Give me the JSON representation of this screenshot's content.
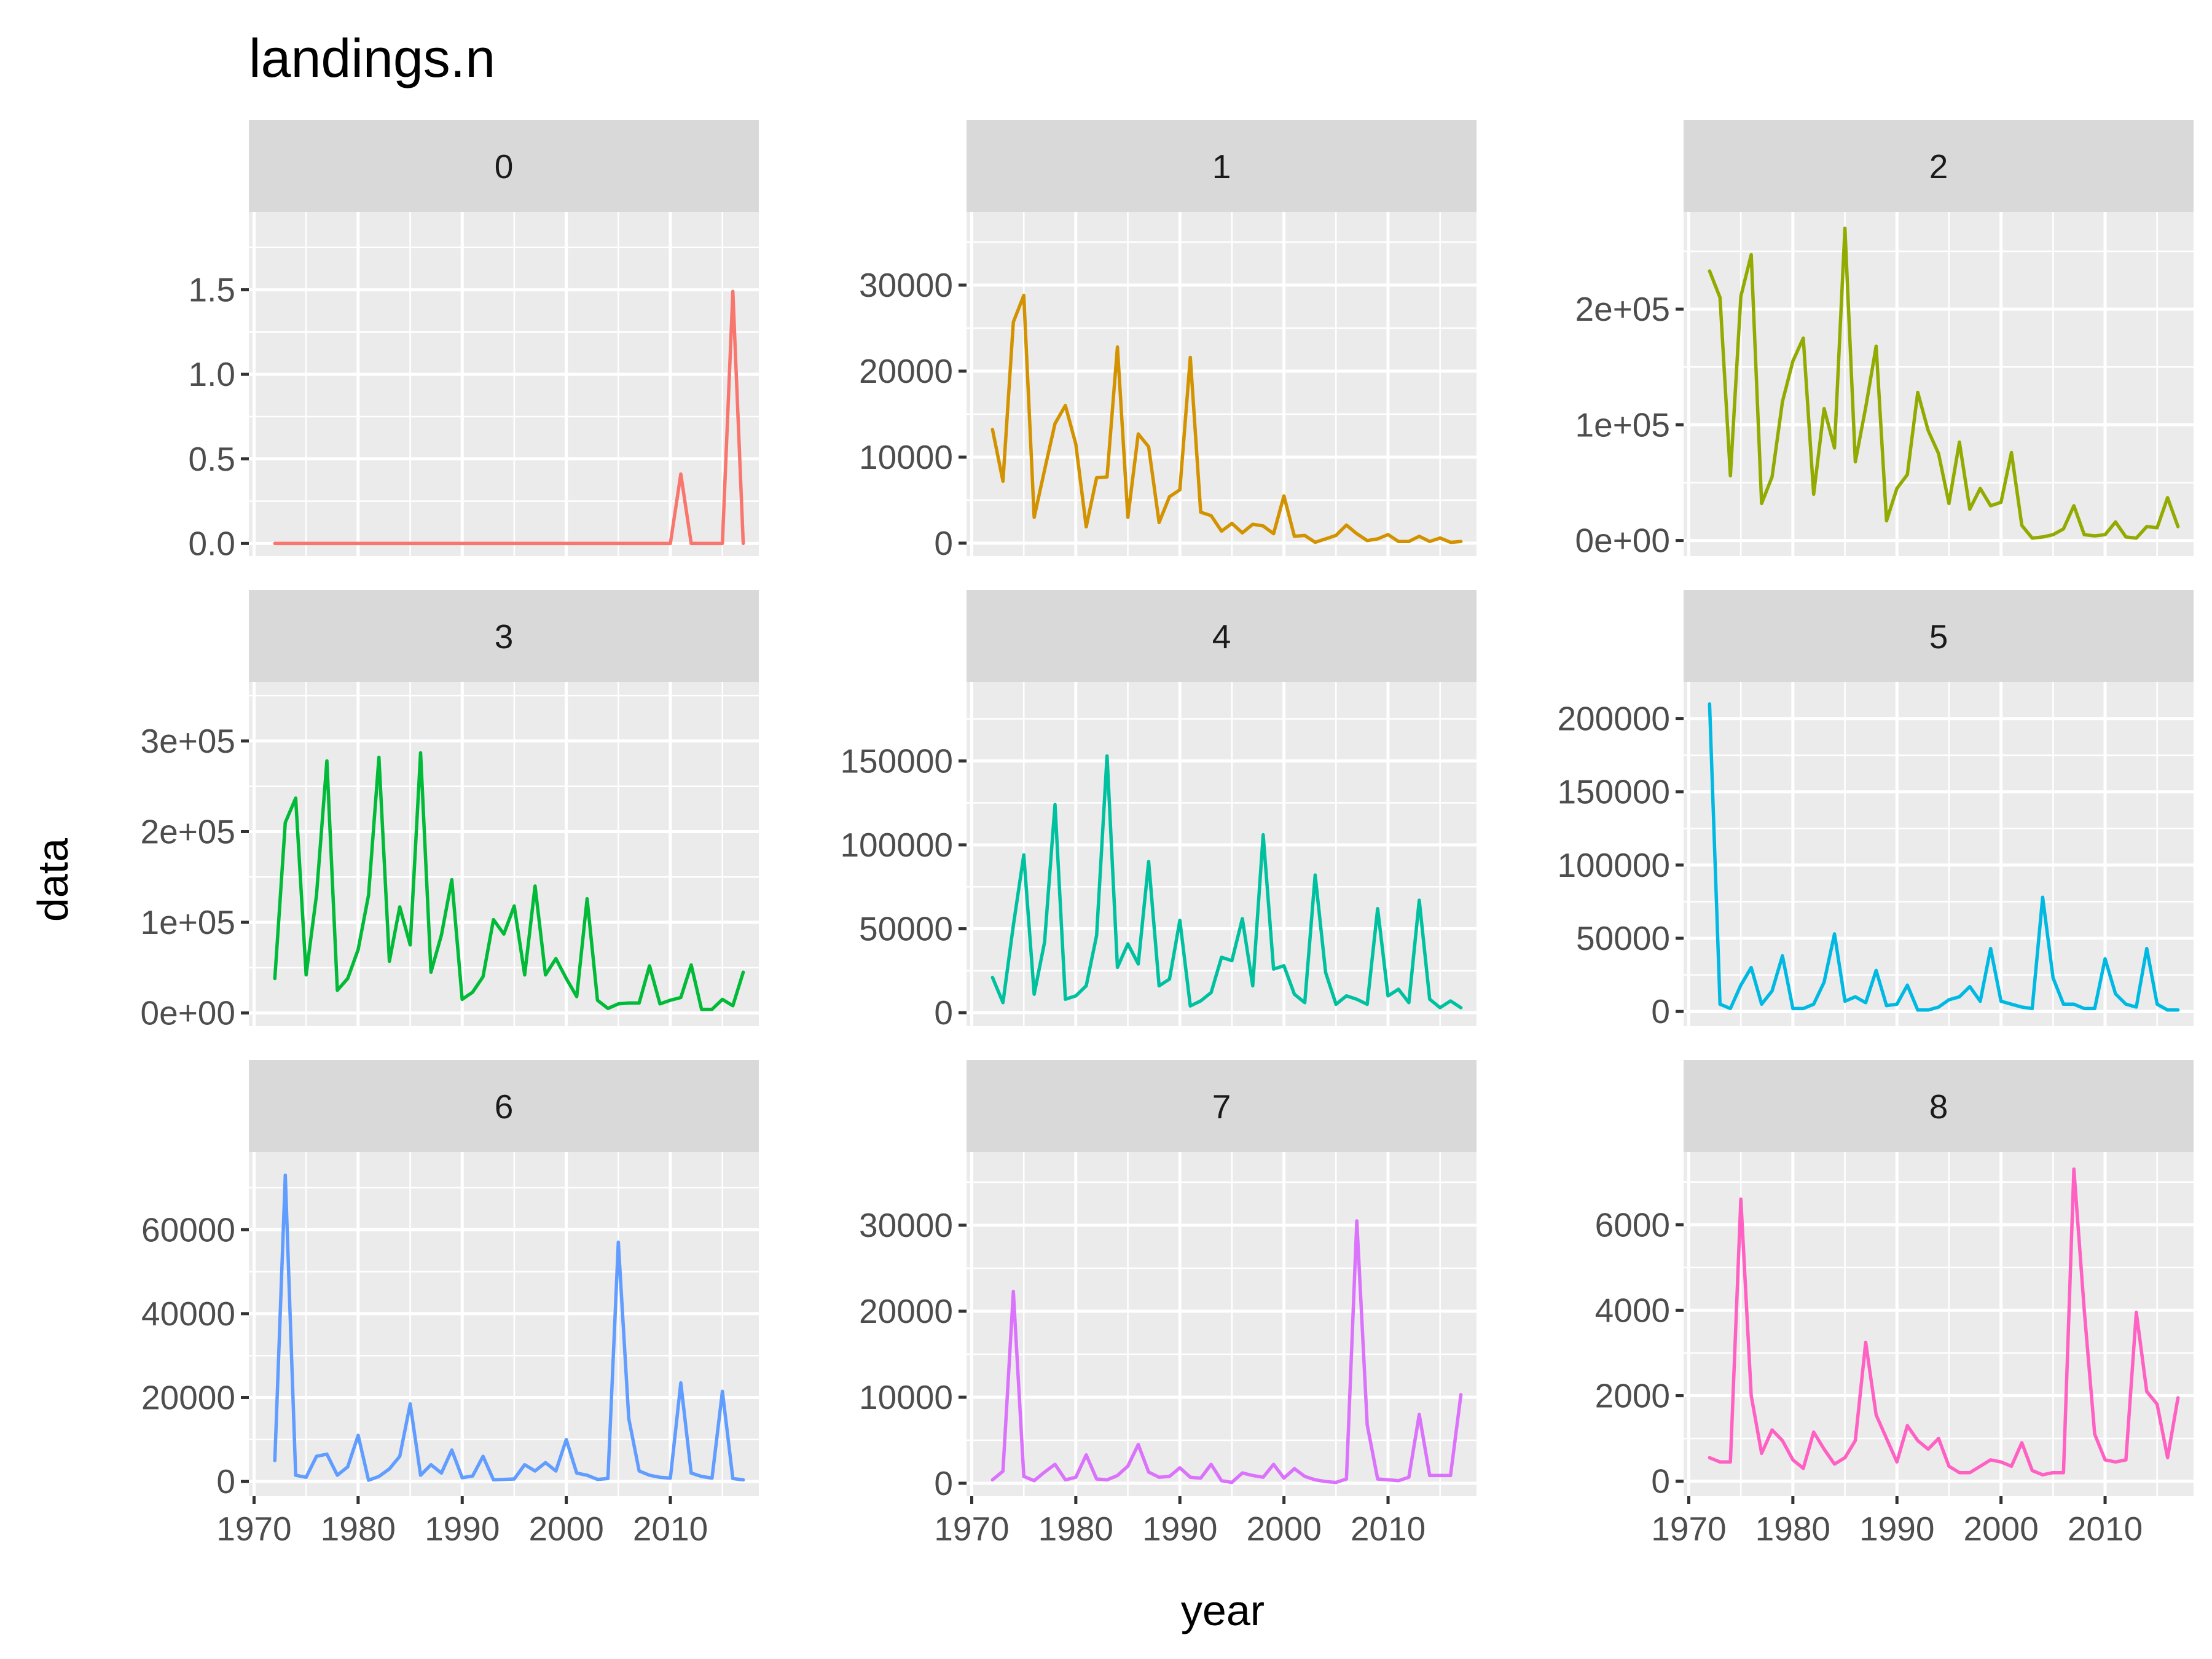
{
  "chart_data": {
    "type": "line",
    "title": "landings.n",
    "xlabel": "year",
    "ylabel": "data",
    "grid": true,
    "legend": "none",
    "facet_layout": "3x3",
    "x_ticks": [
      1970,
      1980,
      1990,
      2000,
      2010
    ],
    "x_tick_labels": [
      "1970",
      "1980",
      "1990",
      "2000",
      "2010"
    ],
    "xlim": [
      1969.5,
      2018.5
    ],
    "x": [
      1972,
      1973,
      1974,
      1975,
      1976,
      1977,
      1978,
      1979,
      1980,
      1981,
      1982,
      1983,
      1984,
      1985,
      1986,
      1987,
      1988,
      1989,
      1990,
      1991,
      1992,
      1993,
      1994,
      1995,
      1996,
      1997,
      1998,
      1999,
      2000,
      2001,
      2002,
      2003,
      2004,
      2005,
      2006,
      2007,
      2008,
      2009,
      2010,
      2011,
      2012,
      2013,
      2014,
      2015,
      2016,
      2017
    ],
    "panels": [
      {
        "label": "0",
        "color": "#F8766D",
        "ylim": [
          -0.075,
          1.96
        ],
        "y_ticks": [
          0,
          0.5,
          1,
          1.5
        ],
        "y_tick_labels": [
          "0.0",
          "0.5",
          "1.0",
          "1.5"
        ],
        "values": [
          0,
          0,
          0,
          0,
          0,
          0,
          0,
          0,
          0,
          0,
          0,
          0,
          0,
          0,
          0,
          0,
          0,
          0,
          0,
          0,
          0,
          0,
          0,
          0,
          0,
          0,
          0,
          0,
          0,
          0,
          0,
          0,
          0,
          0,
          0,
          0,
          0,
          0,
          0,
          0.41,
          0,
          0,
          0,
          0,
          1.49,
          0
        ]
      },
      {
        "label": "1",
        "color": "#D39200",
        "ylim": [
          -1500,
          38500
        ],
        "y_ticks": [
          0,
          10000,
          20000,
          30000
        ],
        "y_tick_labels": [
          "0",
          "10000",
          "20000",
          "30000"
        ],
        "values": [
          13200,
          7200,
          25700,
          28800,
          3000,
          8500,
          13900,
          16000,
          11500,
          1900,
          7600,
          7700,
          22800,
          3000,
          12700,
          11200,
          2400,
          5400,
          6200,
          21600,
          3600,
          3200,
          1400,
          2300,
          1200,
          2200,
          2000,
          1100,
          5500,
          800,
          900,
          100,
          500,
          900,
          2100,
          1100,
          300,
          500,
          1000,
          200,
          200,
          800,
          200,
          600,
          100,
          200
        ]
      },
      {
        "label": "2",
        "color": "#93AA00",
        "ylim": [
          -13500,
          284000
        ],
        "y_ticks": [
          0,
          100000,
          200000
        ],
        "y_tick_labels": [
          "0e+00",
          "1e+05",
          "2e+05"
        ],
        "values": [
          233000,
          210000,
          56000,
          211000,
          247000,
          32000,
          55000,
          120000,
          155000,
          175000,
          40000,
          114000,
          80000,
          270000,
          68000,
          115000,
          168000,
          17000,
          45000,
          57000,
          128000,
          95000,
          75000,
          32000,
          85000,
          27000,
          45000,
          30000,
          33000,
          76000,
          13000,
          2000,
          3000,
          5000,
          10000,
          30000,
          5000,
          4000,
          5000,
          16000,
          3000,
          2000,
          12000,
          11000,
          37000,
          12000
        ]
      },
      {
        "label": "3",
        "color": "#00BA38",
        "ylim": [
          -14500,
          365000
        ],
        "y_ticks": [
          0,
          100000,
          200000,
          300000
        ],
        "y_tick_labels": [
          "0e+00",
          "1e+05",
          "2e+05",
          "3e+05"
        ],
        "values": [
          38000,
          210000,
          237000,
          42000,
          130000,
          278000,
          25000,
          38000,
          70000,
          130000,
          282000,
          57000,
          117000,
          75000,
          287000,
          45000,
          86000,
          147000,
          15000,
          23000,
          40000,
          103000,
          87000,
          118000,
          42000,
          140000,
          42000,
          60000,
          38000,
          18000,
          126000,
          14000,
          5000,
          10000,
          11000,
          11000,
          52000,
          10000,
          14000,
          17000,
          53000,
          4000,
          4000,
          15000,
          8000,
          45000
        ]
      },
      {
        "label": "4",
        "color": "#00C19F",
        "ylim": [
          -8000,
          197000
        ],
        "y_ticks": [
          0,
          50000,
          100000,
          150000
        ],
        "y_tick_labels": [
          "0",
          "50000",
          "100000",
          "150000"
        ],
        "values": [
          21000,
          6000,
          52000,
          94000,
          11000,
          42000,
          124000,
          8000,
          10000,
          16000,
          46000,
          153000,
          27000,
          41000,
          29000,
          90000,
          16000,
          20000,
          55000,
          4000,
          7000,
          12000,
          33000,
          31000,
          56000,
          16000,
          106000,
          26000,
          28000,
          11000,
          6000,
          82000,
          24000,
          5000,
          10000,
          8000,
          5000,
          62000,
          10000,
          14000,
          6000,
          67000,
          8000,
          3000,
          7000,
          3000
        ]
      },
      {
        "label": "5",
        "color": "#00B9E3",
        "ylim": [
          -10000,
          225000
        ],
        "y_ticks": [
          0,
          50000,
          100000,
          150000,
          200000
        ],
        "y_tick_labels": [
          "0",
          "50000",
          "100000",
          "150000",
          "200000"
        ],
        "values": [
          210000,
          5000,
          2000,
          18000,
          30000,
          5000,
          14000,
          38000,
          2000,
          2000,
          5000,
          20000,
          53000,
          7000,
          10000,
          6000,
          28000,
          4000,
          5000,
          18000,
          1000,
          1000,
          3000,
          8000,
          10000,
          17000,
          7000,
          43000,
          7000,
          5000,
          3000,
          2000,
          78000,
          23000,
          5000,
          5000,
          2000,
          2000,
          36000,
          12000,
          5000,
          3000,
          43000,
          5000,
          1000,
          1000
        ]
      },
      {
        "label": "6",
        "color": "#619CFF",
        "ylim": [
          -3500,
          78500
        ],
        "y_ticks": [
          0,
          20000,
          40000,
          60000
        ],
        "y_tick_labels": [
          "0",
          "20000",
          "40000",
          "60000"
        ],
        "values": [
          5000,
          73000,
          1500,
          1000,
          6000,
          6500,
          1500,
          3500,
          11000,
          300,
          1200,
          3000,
          6000,
          18500,
          1500,
          4000,
          2000,
          7500,
          900,
          1300,
          6000,
          400,
          500,
          600,
          4000,
          2500,
          4500,
          2500,
          10000,
          2000,
          1500,
          500,
          700,
          57000,
          15000,
          2500,
          1500,
          1000,
          800,
          23500,
          2000,
          1200,
          800,
          21500,
          700,
          400
        ]
      },
      {
        "label": "7",
        "color": "#DB72FB",
        "ylim": [
          -1500,
          38500
        ],
        "y_ticks": [
          0,
          10000,
          20000,
          30000
        ],
        "y_tick_labels": [
          "0",
          "10000",
          "20000",
          "30000"
        ],
        "values": [
          400,
          1400,
          22300,
          800,
          300,
          1300,
          2200,
          400,
          700,
          3300,
          500,
          400,
          900,
          2000,
          4500,
          1300,
          700,
          800,
          1800,
          700,
          600,
          2200,
          300,
          100,
          1200,
          900,
          700,
          2200,
          600,
          1700,
          800,
          400,
          200,
          100,
          500,
          30500,
          6800,
          500,
          400,
          300,
          700,
          8000,
          900,
          900,
          900,
          10300
        ]
      },
      {
        "label": "8",
        "color": "#FF61C3",
        "ylim": [
          -350,
          7700
        ],
        "y_ticks": [
          0,
          2000,
          4000,
          6000
        ],
        "y_tick_labels": [
          "0",
          "2000",
          "4000",
          "6000"
        ],
        "values": [
          550,
          450,
          450,
          6600,
          2000,
          650,
          1200,
          950,
          500,
          300,
          1150,
          750,
          400,
          550,
          950,
          3250,
          1550,
          1000,
          450,
          1300,
          950,
          750,
          1000,
          350,
          200,
          200,
          350,
          500,
          450,
          350,
          900,
          250,
          150,
          200,
          200,
          7300,
          4000,
          1100,
          500,
          450,
          500,
          3950,
          2100,
          1800,
          550,
          1950
        ]
      }
    ]
  }
}
